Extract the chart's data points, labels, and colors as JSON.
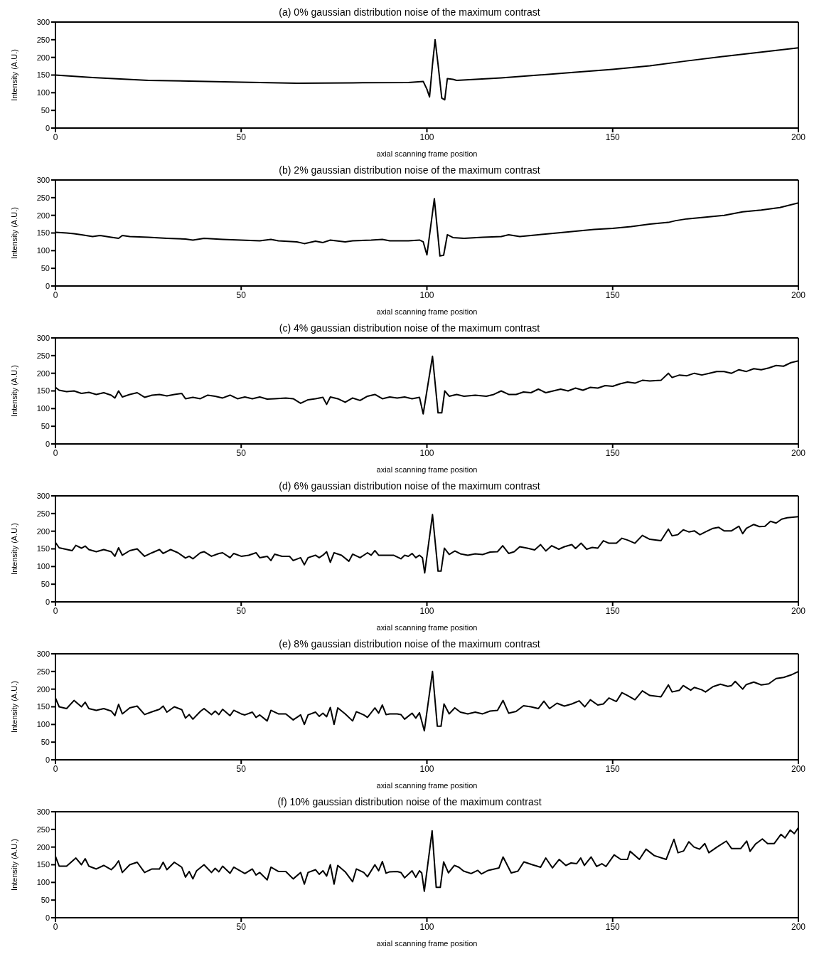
{
  "chart_data": [
    {
      "type": "line",
      "title": "(a) 0% gaussian distribution noise of the maximum contrast",
      "xlabel": "axial scanning frame position",
      "ylabel": "Intensity (A.U.)",
      "xlim": [
        0,
        200
      ],
      "xticks": [
        0,
        50,
        100,
        150,
        200
      ],
      "ylim": [
        0,
        300
      ],
      "yticks": [
        0,
        50,
        100,
        150,
        200,
        250,
        300
      ],
      "color": "#000000",
      "x": [
        0,
        10,
        25,
        50,
        65,
        80,
        95,
        99,
        100,
        100.7,
        101.5,
        102.2,
        103,
        104,
        104.8,
        105.5,
        107,
        108,
        120,
        140,
        150,
        160,
        170,
        180,
        190,
        200
      ],
      "values": [
        150,
        143,
        135,
        130,
        127,
        128,
        129,
        132,
        110,
        88,
        180,
        250,
        180,
        85,
        80,
        140,
        138,
        135,
        142,
        158,
        166,
        176,
        190,
        203,
        215,
        227
      ]
    },
    {
      "type": "line",
      "title": "(b) 2% gaussian distribution noise of the maximum contrast",
      "xlabel": "axial scanning frame position",
      "ylabel": "Intensity (A.U.)",
      "xlim": [
        0,
        200
      ],
      "xticks": [
        0,
        50,
        100,
        150,
        200
      ],
      "ylim": [
        0,
        300
      ],
      "yticks": [
        0,
        50,
        100,
        150,
        200,
        250,
        300
      ],
      "color": "#000000",
      "x": [
        0,
        3,
        5,
        7,
        10,
        12,
        15,
        17,
        18,
        20,
        25,
        30,
        35,
        37,
        40,
        45,
        50,
        55,
        58,
        60,
        65,
        67,
        70,
        72,
        74,
        78,
        80,
        85,
        88,
        90,
        95,
        98,
        99,
        100,
        102,
        103.5,
        104.5,
        105.5,
        107,
        110,
        115,
        120,
        122,
        125,
        130,
        135,
        140,
        145,
        150,
        155,
        160,
        165,
        167,
        170,
        175,
        180,
        185,
        190,
        195,
        200
      ],
      "values": [
        152,
        150,
        148,
        145,
        140,
        143,
        138,
        135,
        143,
        140,
        138,
        135,
        133,
        130,
        135,
        132,
        130,
        128,
        132,
        128,
        125,
        120,
        127,
        123,
        130,
        125,
        128,
        130,
        132,
        128,
        128,
        130,
        125,
        88,
        247,
        85,
        87,
        145,
        137,
        135,
        138,
        140,
        145,
        140,
        145,
        150,
        155,
        160,
        163,
        168,
        175,
        180,
        185,
        190,
        195,
        200,
        210,
        215,
        222,
        235
      ]
    },
    {
      "type": "line",
      "title": "(c) 4% gaussian distribution noise of the maximum contrast",
      "xlabel": "axial scanning frame position",
      "ylabel": "Intensity (A.U.)",
      "xlim": [
        0,
        200
      ],
      "xticks": [
        0,
        50,
        100,
        150,
        200
      ],
      "ylim": [
        0,
        300
      ],
      "yticks": [
        0,
        50,
        100,
        150,
        200,
        250,
        300
      ],
      "color": "#000000",
      "x": [
        0,
        1,
        3,
        5,
        7,
        9,
        11,
        13,
        15,
        16,
        17,
        18,
        20,
        22,
        24,
        26,
        28,
        30,
        32,
        34,
        35,
        37,
        39,
        41,
        43,
        45,
        47,
        49,
        51,
        53,
        55,
        57,
        59,
        62,
        64,
        66,
        68,
        70,
        72,
        73,
        74,
        76,
        78,
        80,
        82,
        84,
        86,
        88,
        90,
        92,
        94,
        96,
        98,
        99,
        101.5,
        103,
        104,
        104.8,
        106,
        108,
        110,
        113,
        116,
        118,
        120,
        122,
        124,
        126,
        128,
        130,
        132,
        134,
        136,
        138,
        140,
        142,
        144,
        146,
        148,
        150,
        152,
        154,
        156,
        158,
        160,
        163,
        165,
        166,
        168,
        170,
        172,
        174,
        176,
        178,
        180,
        182,
        184,
        186,
        188,
        190,
        192,
        194,
        196,
        198,
        200
      ],
      "values": [
        160,
        152,
        148,
        150,
        143,
        146,
        140,
        145,
        138,
        130,
        150,
        133,
        140,
        145,
        132,
        138,
        140,
        136,
        140,
        143,
        128,
        132,
        128,
        138,
        135,
        130,
        138,
        128,
        133,
        128,
        133,
        127,
        128,
        130,
        128,
        115,
        125,
        128,
        132,
        112,
        133,
        128,
        118,
        130,
        123,
        135,
        140,
        128,
        133,
        130,
        133,
        128,
        132,
        85,
        248,
        88,
        88,
        150,
        135,
        140,
        135,
        138,
        135,
        140,
        150,
        140,
        140,
        147,
        145,
        155,
        145,
        150,
        155,
        150,
        158,
        152,
        160,
        158,
        165,
        163,
        170,
        175,
        172,
        180,
        178,
        180,
        200,
        188,
        195,
        193,
        200,
        195,
        200,
        205,
        205,
        200,
        210,
        205,
        213,
        210,
        215,
        222,
        220,
        230,
        235
      ]
    },
    {
      "type": "line",
      "title": "(d) 6% gaussian distribution noise of the maximum contrast",
      "xlabel": "axial scanning frame position",
      "ylabel": "Intensity (A.U.)",
      "xlim": [
        0,
        200
      ],
      "xticks": [
        0,
        50,
        100,
        150,
        200
      ],
      "ylim": [
        0,
        300
      ],
      "yticks": [
        0,
        50,
        100,
        150,
        200,
        250,
        300
      ],
      "color": "#000000",
      "x": [
        0,
        1,
        4.5,
        5.5,
        7,
        8,
        9,
        11,
        13,
        15,
        16,
        17,
        18,
        20,
        22,
        24,
        26,
        28,
        29,
        31,
        33,
        35,
        36,
        37,
        39,
        40,
        42,
        44,
        45,
        47,
        48,
        50,
        52,
        54,
        55,
        57,
        58,
        59,
        61,
        63,
        64,
        66,
        67,
        68,
        70,
        71,
        72,
        73,
        74,
        75,
        77,
        79,
        80,
        82,
        84,
        85,
        86,
        87,
        89,
        91,
        93,
        94,
        95,
        96,
        97,
        98,
        98.8,
        99.4,
        101.5,
        103,
        103.8,
        104.7,
        106,
        107.5,
        109,
        111,
        113,
        115,
        117,
        119,
        120.4,
        122,
        123.5,
        125,
        127,
        129,
        130.6,
        132,
        133.6,
        135.5,
        137,
        139,
        140,
        141.5,
        143,
        144.5,
        146,
        147.5,
        149,
        151,
        152.5,
        154,
        156,
        158,
        160,
        163,
        165,
        166,
        167.5,
        169,
        170.5,
        172,
        173.5,
        175,
        177,
        178.5,
        180,
        182,
        184,
        185,
        186,
        188,
        189.5,
        191,
        192.5,
        194,
        195.5,
        197,
        200
      ],
      "values": [
        168,
        153,
        145,
        160,
        152,
        158,
        148,
        142,
        148,
        142,
        129,
        153,
        132,
        145,
        150,
        129,
        139,
        148,
        137,
        148,
        139,
        124,
        129,
        122,
        139,
        142,
        129,
        137,
        139,
        125,
        137,
        129,
        132,
        139,
        125,
        129,
        117,
        135,
        129,
        129,
        117,
        125,
        105,
        125,
        132,
        125,
        132,
        142,
        112,
        139,
        132,
        115,
        135,
        125,
        139,
        132,
        145,
        132,
        132,
        132,
        122,
        132,
        129,
        137,
        125,
        132,
        125,
        82,
        247,
        87,
        87,
        152,
        134,
        144,
        136,
        132,
        136,
        134,
        141,
        142,
        159,
        137,
        142,
        156,
        152,
        147,
        162,
        144,
        159,
        149,
        156,
        162,
        151,
        166,
        149,
        154,
        152,
        173,
        166,
        166,
        180,
        175,
        166,
        188,
        177,
        173,
        206,
        187,
        190,
        204,
        198,
        201,
        190,
        198,
        208,
        211,
        201,
        201,
        214,
        193,
        208,
        219,
        213,
        214,
        228,
        223,
        234,
        238,
        241
      ]
    },
    {
      "type": "line",
      "title": "(e) 8% gaussian distribution noise of the maximum contrast",
      "xlabel": "axial scanning frame position",
      "ylabel": "Intensity (A.U.)",
      "xlim": [
        0,
        200
      ],
      "xticks": [
        0,
        50,
        100,
        150,
        200
      ],
      "ylim": [
        0,
        300
      ],
      "yticks": [
        0,
        50,
        100,
        150,
        200,
        250,
        300
      ],
      "color": "#000000",
      "x": [
        0,
        1,
        3,
        5,
        7,
        8,
        9,
        11,
        13,
        15,
        16,
        17,
        18,
        20,
        22,
        24,
        26,
        28,
        29,
        30,
        32,
        34,
        35,
        36,
        37,
        39,
        40,
        42,
        43,
        44,
        45,
        47,
        48,
        50,
        51,
        53,
        54,
        55,
        57,
        58,
        60,
        62,
        64,
        66,
        67,
        68,
        70,
        71,
        72,
        73,
        74,
        75,
        76,
        78,
        80,
        81,
        83,
        84,
        86,
        87,
        88,
        89,
        90,
        92,
        93,
        94,
        96,
        97,
        98,
        99.3,
        101.5,
        102.8,
        103.8,
        104.6,
        106,
        107.5,
        109,
        111,
        113,
        115,
        117,
        119,
        120.5,
        122,
        124,
        126,
        128,
        130,
        131.5,
        133,
        135,
        137,
        139,
        141,
        142.5,
        144,
        146,
        147.5,
        149,
        151,
        152.5,
        154,
        156,
        158,
        160,
        163,
        165,
        166,
        168,
        169,
        171,
        172,
        174,
        175,
        177,
        179,
        181,
        182,
        183,
        185,
        186,
        188,
        190,
        192,
        194,
        196,
        198,
        200
      ],
      "values": [
        175,
        150,
        145,
        168,
        150,
        163,
        145,
        140,
        145,
        138,
        125,
        157,
        130,
        147,
        152,
        128,
        136,
        143,
        152,
        135,
        150,
        142,
        118,
        128,
        115,
        137,
        145,
        128,
        138,
        128,
        143,
        125,
        140,
        130,
        127,
        135,
        120,
        127,
        110,
        140,
        130,
        130,
        113,
        127,
        100,
        127,
        135,
        123,
        132,
        122,
        148,
        100,
        147,
        130,
        110,
        136,
        127,
        120,
        147,
        132,
        155,
        128,
        130,
        130,
        128,
        115,
        132,
        118,
        133,
        82,
        250,
        95,
        95,
        158,
        130,
        147,
        135,
        130,
        135,
        130,
        138,
        140,
        168,
        132,
        137,
        153,
        150,
        145,
        166,
        145,
        160,
        152,
        158,
        167,
        150,
        170,
        155,
        158,
        175,
        165,
        190,
        182,
        170,
        195,
        182,
        178,
        212,
        192,
        197,
        210,
        197,
        205,
        198,
        192,
        207,
        214,
        208,
        210,
        222,
        200,
        213,
        220,
        212,
        215,
        230,
        233,
        240,
        250
      ]
    },
    {
      "type": "line",
      "title": "(f) 10% gaussian distribution noise of the maximum contrast",
      "xlabel": "axial scanning frame position",
      "ylabel": "Intensity (A.U.)",
      "xlim": [
        0,
        200
      ],
      "xticks": [
        0,
        50,
        100,
        150,
        200
      ],
      "ylim": [
        0,
        300
      ],
      "yticks": [
        0,
        50,
        100,
        150,
        200,
        250,
        300
      ],
      "color": "#000000",
      "x": [
        0,
        1,
        3,
        5.5,
        7,
        8,
        9,
        11,
        13,
        15,
        16,
        17,
        18,
        20,
        22,
        24,
        26,
        28,
        29,
        30,
        32,
        34,
        35,
        36,
        37,
        38,
        40,
        42,
        43,
        44,
        45,
        47,
        48,
        50,
        51,
        53,
        54,
        55,
        57,
        58,
        60,
        62,
        64,
        66,
        67,
        68,
        70,
        71,
        72,
        73,
        74,
        75,
        76,
        78,
        80,
        81,
        83,
        84,
        86,
        87,
        88,
        89,
        90,
        92,
        93,
        94,
        96,
        97,
        98,
        98.6,
        99.3,
        101.4,
        102.5,
        103.6,
        104.5,
        105.8,
        107.4,
        108.6,
        109.9,
        111.9,
        113.7,
        114.7,
        116.5,
        119.4,
        120.5,
        122.7,
        124.5,
        126.1,
        128.4,
        130.6,
        132,
        133.8,
        135.6,
        137.4,
        138.8,
        140.3,
        141.4,
        142.4,
        144.2,
        145.7,
        147.1,
        148.2,
        150.4,
        152.2,
        154,
        154.7,
        157.2,
        159,
        161.2,
        164.4,
        166.5,
        167.6,
        169.1,
        170.5,
        171.9,
        173.4,
        174.8,
        175.9,
        178.1,
        180.6,
        182,
        184.5,
        186.1,
        187,
        188.5,
        190.3,
        191.7,
        193.5,
        195.3,
        196.4,
        197.8,
        198.9,
        200
      ],
      "values": [
        174,
        146,
        146,
        169,
        150,
        167,
        146,
        138,
        148,
        136,
        146,
        161,
        128,
        150,
        157,
        128,
        138,
        138,
        157,
        136,
        157,
        143,
        115,
        131,
        110,
        133,
        150,
        128,
        140,
        130,
        146,
        126,
        143,
        131,
        125,
        138,
        121,
        128,
        107,
        143,
        131,
        131,
        110,
        128,
        95,
        128,
        136,
        123,
        133,
        118,
        150,
        95,
        148,
        130,
        102,
        138,
        128,
        116,
        150,
        133,
        159,
        126,
        130,
        131,
        128,
        113,
        133,
        115,
        133,
        127,
        75,
        246,
        86,
        86,
        158,
        127,
        148,
        143,
        132,
        125,
        134,
        124,
        134,
        141,
        172,
        127,
        132,
        158,
        150,
        143,
        169,
        141,
        165,
        148,
        155,
        153,
        169,
        148,
        172,
        145,
        153,
        145,
        178,
        165,
        165,
        188,
        165,
        194,
        176,
        165,
        222,
        184,
        189,
        215,
        200,
        194,
        210,
        184,
        200,
        217,
        196,
        196,
        217,
        188,
        209,
        223,
        210,
        210,
        236,
        226,
        248,
        238,
        255
      ]
    }
  ]
}
